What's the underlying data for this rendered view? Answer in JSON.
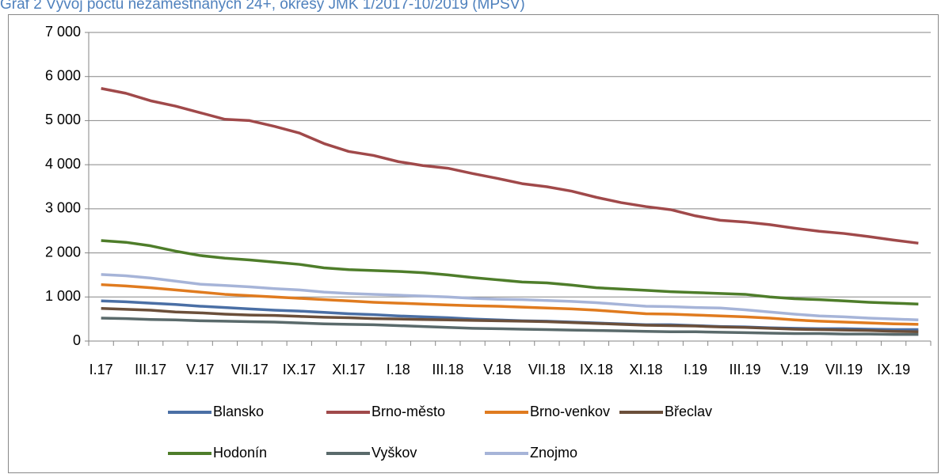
{
  "chart_data": {
    "type": "line",
    "title": "Graf 2 Vývoj počtu nezaměstnaných 24+, okresy JMK 1/2017-10/2019 (MPSV)",
    "categories": [
      "I.17",
      null,
      "III.17",
      null,
      "V.17",
      null,
      "VII.17",
      null,
      "IX.17",
      null,
      "XI.17",
      null,
      "I.18",
      null,
      "III.18",
      null,
      "V.18",
      null,
      "VII.18",
      null,
      "IX.18",
      null,
      "XI.18",
      null,
      "I.19",
      null,
      "III.19",
      null,
      "V.19",
      null,
      "VII.19",
      null,
      "IX.19",
      null
    ],
    "ylim": [
      0,
      7000
    ],
    "yticks": [
      0,
      {
        "value": 1000,
        "label": "1 000"
      },
      {
        "value": 2000,
        "label": "2 000"
      },
      {
        "value": 3000,
        "label": "3 000"
      },
      {
        "value": 4000,
        "label": "4 000"
      },
      {
        "value": 5000,
        "label": "5 000"
      },
      {
        "value": 6000,
        "label": "6 000"
      },
      {
        "value": 7000,
        "label": "7 000"
      }
    ],
    "grid": true,
    "legend": "bottom",
    "series": [
      {
        "name": "Blansko",
        "color": "#4a6fa5",
        "values": [
          910,
          890,
          860,
          830,
          790,
          760,
          730,
          700,
          680,
          650,
          620,
          600,
          570,
          550,
          530,
          500,
          480,
          460,
          450,
          430,
          410,
          390,
          370,
          370,
          350,
          330,
          320,
          300,
          290,
          280,
          280,
          270,
          260,
          260
        ]
      },
      {
        "name": "Brno-město",
        "color": "#a0494a",
        "values": [
          5730,
          5620,
          5450,
          5330,
          5180,
          5030,
          5000,
          4870,
          4720,
          4480,
          4300,
          4210,
          4070,
          3980,
          3920,
          3800,
          3690,
          3570,
          3500,
          3400,
          3260,
          3140,
          3050,
          2980,
          2840,
          2740,
          2700,
          2640,
          2560,
          2490,
          2440,
          2370,
          2290,
          2220
        ]
      },
      {
        "name": "Brno-venkov",
        "color": "#e07b1f",
        "values": [
          1280,
          1250,
          1210,
          1160,
          1110,
          1060,
          1030,
          1000,
          970,
          940,
          910,
          880,
          860,
          840,
          820,
          800,
          790,
          770,
          750,
          730,
          700,
          660,
          620,
          610,
          590,
          570,
          550,
          520,
          480,
          450,
          430,
          410,
          390,
          380
        ]
      },
      {
        "name": "Břeclav",
        "color": "#6b4f3a",
        "values": [
          740,
          720,
          700,
          660,
          640,
          610,
          590,
          580,
          560,
          540,
          530,
          510,
          500,
          490,
          480,
          470,
          460,
          450,
          440,
          420,
          400,
          380,
          360,
          350,
          340,
          320,
          310,
          290,
          270,
          260,
          250,
          240,
          220,
          210
        ]
      },
      {
        "name": "Hodonín",
        "color": "#4e7d2a",
        "values": [
          2280,
          2240,
          2160,
          2040,
          1940,
          1880,
          1840,
          1790,
          1740,
          1660,
          1620,
          1600,
          1580,
          1550,
          1500,
          1440,
          1390,
          1340,
          1320,
          1270,
          1210,
          1180,
          1150,
          1120,
          1100,
          1080,
          1060,
          1000,
          960,
          940,
          910,
          880,
          860,
          840
        ]
      },
      {
        "name": "Vyškov",
        "color": "#5a6a6b",
        "values": [
          520,
          510,
          490,
          480,
          460,
          450,
          440,
          430,
          410,
          390,
          380,
          370,
          350,
          330,
          310,
          290,
          280,
          270,
          260,
          250,
          240,
          230,
          220,
          210,
          210,
          200,
          190,
          180,
          170,
          170,
          160,
          160,
          150,
          150
        ]
      },
      {
        "name": "Znojmo",
        "color": "#a6b4d8",
        "values": [
          1510,
          1480,
          1430,
          1360,
          1290,
          1260,
          1230,
          1190,
          1160,
          1110,
          1080,
          1060,
          1040,
          1020,
          1000,
          970,
          950,
          940,
          920,
          900,
          870,
          830,
          790,
          780,
          760,
          750,
          710,
          660,
          610,
          570,
          550,
          520,
          500,
          480
        ]
      }
    ]
  }
}
